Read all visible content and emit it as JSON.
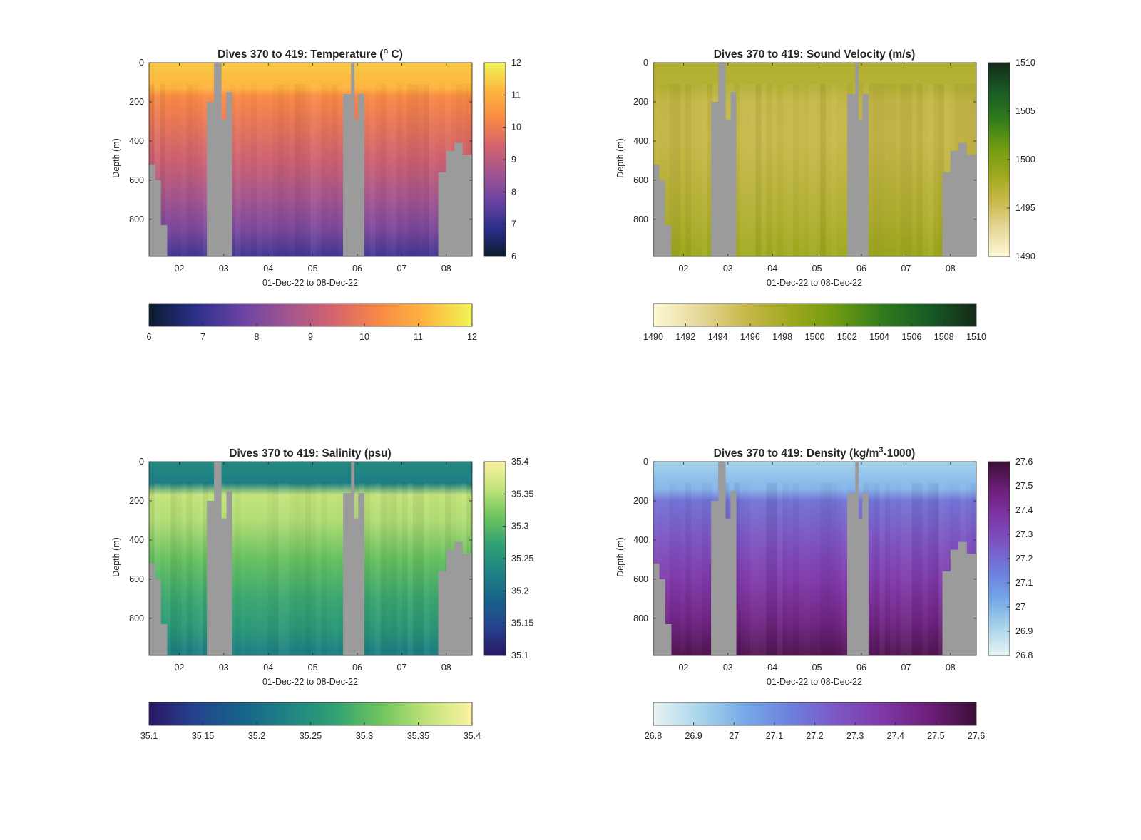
{
  "figure": {
    "background": "#ffffff",
    "nodata_color": "#9b9b9b",
    "axis_color": "#262626"
  },
  "chart_data": [
    {
      "type": "heatmap",
      "title": "Dives 370 to 419: Temperature (° C)",
      "title_parts": {
        "pre": "Dives 370 to 419: Temperature (",
        "sup": "o",
        "post": " C)"
      },
      "xlabel": "01-Dec-22 to 08-Dec-22",
      "ylabel": "Depth (m)",
      "x_ticks": [
        "02",
        "03",
        "04",
        "05",
        "06",
        "07",
        "08"
      ],
      "x_tick_days": [
        2,
        3,
        4,
        5,
        6,
        7,
        8
      ],
      "xlim_days": [
        1.32,
        8.58
      ],
      "ylim_m": [
        0,
        990
      ],
      "y_reversed": true,
      "y_ticks": [
        0,
        200,
        400,
        600,
        800
      ],
      "cbar_right_ticks": [
        "6",
        "7",
        "8",
        "9",
        "10",
        "11",
        "12"
      ],
      "cbar_bottom_ticks": [
        "6",
        "7",
        "8",
        "9",
        "10",
        "11",
        "12"
      ],
      "clim": [
        6,
        12
      ],
      "colormap": [
        "#0b1c2e",
        "#2a2f8a",
        "#6a43a4",
        "#a15590",
        "#d5636d",
        "#f98a44",
        "#fdb63f",
        "#eff556"
      ],
      "profile": [
        [
          0,
          11.4
        ],
        [
          130,
          11.1
        ],
        [
          170,
          10.3
        ],
        [
          300,
          9.9
        ],
        [
          500,
          9.3
        ],
        [
          700,
          8.6
        ],
        [
          850,
          8.0
        ],
        [
          990,
          7.2
        ]
      ]
    },
    {
      "type": "heatmap",
      "title": "Dives 370 to 419: Sound Velocity (m/s)",
      "xlabel": "01-Dec-22 to 08-Dec-22",
      "ylabel": "Depth (m)",
      "x_ticks": [
        "02",
        "03",
        "04",
        "05",
        "06",
        "07",
        "08"
      ],
      "x_tick_days": [
        2,
        3,
        4,
        5,
        6,
        7,
        8
      ],
      "xlim_days": [
        1.32,
        8.58
      ],
      "ylim_m": [
        0,
        990
      ],
      "y_reversed": true,
      "y_ticks": [
        0,
        200,
        400,
        600,
        800
      ],
      "cbar_right_ticks": [
        "1490",
        "1495",
        "1500",
        "1505",
        "1510"
      ],
      "cbar_bottom_ticks": [
        "1490",
        "1492",
        "1494",
        "1496",
        "1498",
        "1500",
        "1502",
        "1504",
        "1506",
        "1508",
        "1510"
      ],
      "clim": [
        1490,
        1510
      ],
      "colormap": [
        "#fdf8d4",
        "#e6d89a",
        "#c8b84a",
        "#9ea81c",
        "#6c9a12",
        "#2f7a1c",
        "#185a25",
        "#142a18"
      ],
      "profile": [
        [
          0,
          1497.2
        ],
        [
          130,
          1497.0
        ],
        [
          200,
          1495.9
        ],
        [
          400,
          1495.8
        ],
        [
          600,
          1496.6
        ],
        [
          800,
          1497.4
        ],
        [
          990,
          1498.6
        ]
      ]
    },
    {
      "type": "heatmap",
      "title": "Dives 370 to 419: Salinity (psu)",
      "xlabel": "01-Dec-22 to 08-Dec-22",
      "ylabel": "Depth (m)",
      "x_ticks": [
        "02",
        "03",
        "04",
        "05",
        "06",
        "07",
        "08"
      ],
      "x_tick_days": [
        2,
        3,
        4,
        5,
        6,
        7,
        8
      ],
      "xlim_days": [
        1.32,
        8.58
      ],
      "ylim_m": [
        0,
        990
      ],
      "y_reversed": true,
      "y_ticks": [
        0,
        200,
        400,
        600,
        800
      ],
      "cbar_right_ticks": [
        "35.4",
        "35.35",
        "35.3",
        "35.25",
        "35.2",
        "35.15",
        "35.1"
      ],
      "cbar_bottom_ticks": [
        "35.1",
        "35.15",
        "35.2",
        "35.25",
        "35.3",
        "35.35",
        "35.4"
      ],
      "clim": [
        35.1,
        35.4
      ],
      "colormap": [
        "#2a1766",
        "#25438f",
        "#17638a",
        "#1f8384",
        "#2fa074",
        "#6cc45e",
        "#bfe278",
        "#fbf2a2"
      ],
      "profile": [
        [
          0,
          35.24
        ],
        [
          110,
          35.22
        ],
        [
          170,
          35.36
        ],
        [
          300,
          35.35
        ],
        [
          500,
          35.31
        ],
        [
          700,
          35.28
        ],
        [
          850,
          35.26
        ],
        [
          990,
          35.22
        ]
      ]
    },
    {
      "type": "heatmap",
      "title": "Dives 370 to 419: Density (kg/m³-1000)",
      "title_parts": {
        "pre": "Dives 370 to 419: Density (kg/m",
        "sup": "3",
        "post": "-1000)"
      },
      "xlabel": "01-Dec-22 to 08-Dec-22",
      "ylabel": "Depth (m)",
      "x_ticks": [
        "02",
        "03",
        "04",
        "05",
        "06",
        "07",
        "08"
      ],
      "x_tick_days": [
        2,
        3,
        4,
        5,
        6,
        7,
        8
      ],
      "xlim_days": [
        1.32,
        8.58
      ],
      "ylim_m": [
        0,
        990
      ],
      "y_reversed": true,
      "y_ticks": [
        0,
        200,
        400,
        600,
        800
      ],
      "cbar_right_ticks": [
        "27.6",
        "27.5",
        "27.4",
        "27.3",
        "27.2",
        "27.1",
        "27",
        "26.9",
        "26.8"
      ],
      "cbar_bottom_ticks": [
        "26.8",
        "26.9",
        "27",
        "27.1",
        "27.2",
        "27.3",
        "27.4",
        "27.5",
        "27.6"
      ],
      "clim": [
        26.8,
        27.6
      ],
      "colormap": [
        "#e8f3f3",
        "#a9d5ea",
        "#76a9e8",
        "#6d7fdc",
        "#7c56c4",
        "#7f37a7",
        "#6c1e79",
        "#3c0f36"
      ],
      "profile": [
        [
          0,
          26.92
        ],
        [
          140,
          27.0
        ],
        [
          200,
          27.18
        ],
        [
          400,
          27.27
        ],
        [
          600,
          27.36
        ],
        [
          800,
          27.45
        ],
        [
          990,
          27.55
        ]
      ]
    }
  ]
}
